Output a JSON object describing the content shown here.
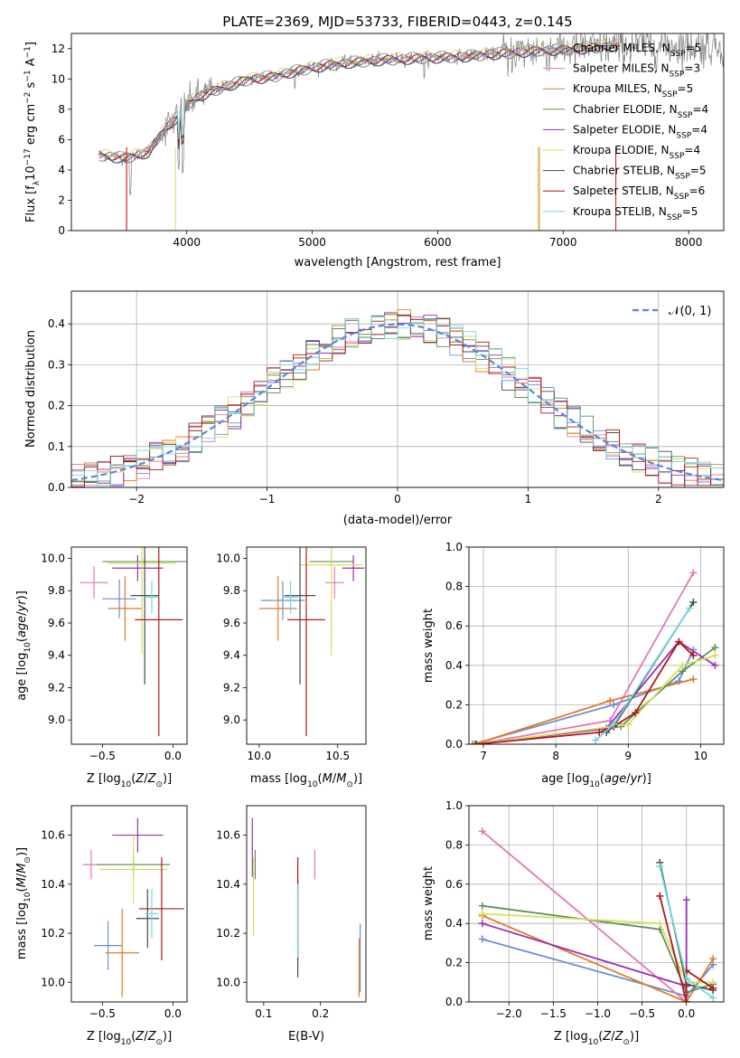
{
  "figure": {
    "title": "PLATE=2369, MJD=53733, FIBERID=0443, z=0.145"
  },
  "models": [
    {
      "name": "Chabrier MILES",
      "nssp": "5",
      "color": "#6b8fd6"
    },
    {
      "name": "Salpeter MILES",
      "nssp": "3",
      "color": "#e377b7"
    },
    {
      "name": "Kroupa MILES",
      "nssp": "5",
      "color": "#e07b25"
    },
    {
      "name": "Chabrier ELODIE",
      "nssp": "4",
      "color": "#5f8f57"
    },
    {
      "name": "Salpeter ELODIE",
      "nssp": "4",
      "color": "#9a2fb5"
    },
    {
      "name": "Kroupa ELODIE",
      "nssp": "4",
      "color": "#d5e05a"
    },
    {
      "name": "Chabrier STELIB",
      "nssp": "5",
      "color": "#4a4a4a"
    },
    {
      "name": "Salpeter STELIB",
      "nssp": "6",
      "color": "#b01818"
    },
    {
      "name": "Kroupa STELIB",
      "nssp": "5",
      "color": "#73d6dd"
    }
  ],
  "chart_data": [
    {
      "type": "line",
      "title": "PLATE=2369, MJD=53733, FIBERID=0443, z=0.145",
      "xlabel": "wavelength [Angstrom, rest frame]",
      "ylabel": "Flux [f_λ 10^-17 erg cm^-2 s^-1 A^-1]",
      "xlim": [
        3080,
        8280
      ],
      "ylim": [
        0,
        13
      ],
      "xticks": [
        4000,
        5000,
        6000,
        7000,
        8000
      ],
      "yticks": [
        0,
        2,
        4,
        6,
        8,
        10,
        12
      ],
      "data_color": "#808080",
      "continuum": {
        "x": [
          3300,
          3500,
          3700,
          3800,
          3900,
          4000,
          4100,
          4300,
          4500,
          4700,
          4900,
          5100,
          5300,
          5600,
          5900,
          6200,
          6500,
          6800,
          7100,
          7400
        ],
        "y": [
          5.0,
          4.8,
          5.2,
          6.5,
          7.3,
          8.3,
          8.9,
          9.5,
          10.0,
          10.2,
          10.6,
          10.9,
          11.1,
          11.3,
          11.4,
          11.5,
          11.7,
          11.9,
          12.0,
          12.2
        ]
      },
      "legend_location": "upper right"
    },
    {
      "type": "histogram",
      "xlabel": "(data-model)/error",
      "ylabel": "Normed distribution",
      "xlim": [
        -2.5,
        2.5
      ],
      "ylim": [
        0,
        0.48
      ],
      "xticks": [
        -2,
        -1,
        0,
        1,
        2
      ],
      "yticks": [
        0.0,
        0.1,
        0.2,
        0.3,
        0.4
      ],
      "grid": true,
      "bin_width": 0.1,
      "reference": {
        "label": "N(0,1)",
        "mu": 0,
        "sigma": 1,
        "color": "#5b86d8"
      },
      "legend_location": "upper right"
    },
    {
      "type": "errorbar",
      "xlabel": "Z [log10(Z/Z⊙)]",
      "ylabel": "age  [log10(age/yr)]",
      "xlim": [
        -0.72,
        0.1
      ],
      "ylim": [
        8.85,
        10.07
      ],
      "xticks": [
        -0.5,
        0.0
      ],
      "yticks": [
        9.0,
        9.2,
        9.4,
        9.6,
        9.8,
        10.0
      ],
      "points": [
        {
          "model": 0,
          "x": -0.38,
          "xerr": 0.12,
          "y": 9.75,
          "yerr": 0.12
        },
        {
          "model": 1,
          "x": -0.56,
          "xerr": 0.1,
          "y": 9.85,
          "yerr": 0.1
        },
        {
          "model": 2,
          "x": -0.34,
          "xerr": 0.12,
          "y": 9.69,
          "yerr": 0.2
        },
        {
          "model": 3,
          "x": -0.2,
          "xerr": 0.3,
          "y": 9.98,
          "yerr": 0.02
        },
        {
          "model": 4,
          "x": -0.25,
          "xerr": 0.18,
          "y": 9.94,
          "yerr": 0.08
        },
        {
          "model": 5,
          "x": -0.22,
          "xerr": 0.24,
          "y": 9.97,
          "yerr": 0.56
        },
        {
          "model": 6,
          "x": -0.2,
          "xerr": 0.1,
          "y": 9.77,
          "yerr": 0.55
        },
        {
          "model": 7,
          "x": -0.1,
          "xerr": 0.17,
          "y": 9.62,
          "yerr": 0.72
        },
        {
          "model": 8,
          "x": -0.15,
          "xerr": 0.05,
          "y": 9.76,
          "yerr": 0.1
        }
      ]
    },
    {
      "type": "errorbar",
      "xlabel": "mass [log10(M/M⊙)]",
      "ylabel": "",
      "xlim": [
        9.92,
        10.68
      ],
      "ylim": [
        8.85,
        10.07
      ],
      "xticks": [
        10.0,
        10.5
      ],
      "yticks": [
        9.0,
        9.2,
        9.4,
        9.6,
        9.8,
        10.0
      ],
      "points": [
        {
          "model": 0,
          "x": 10.15,
          "xerr": 0.14,
          "y": 9.74,
          "yerr": 0.12
        },
        {
          "model": 1,
          "x": 10.48,
          "xerr": 0.06,
          "y": 9.85,
          "yerr": 0.1
        },
        {
          "model": 2,
          "x": 10.12,
          "xerr": 0.12,
          "y": 9.69,
          "yerr": 0.2
        },
        {
          "model": 3,
          "x": 10.46,
          "xerr": 0.14,
          "y": 9.98,
          "yerr": 0.02
        },
        {
          "model": 4,
          "x": 10.6,
          "xerr": 0.07,
          "y": 9.94,
          "yerr": 0.08
        },
        {
          "model": 5,
          "x": 10.46,
          "xerr": 0.2,
          "y": 9.96,
          "yerr": 0.56
        },
        {
          "model": 6,
          "x": 10.26,
          "xerr": 0.1,
          "y": 9.77,
          "yerr": 0.55
        },
        {
          "model": 7,
          "x": 10.3,
          "xerr": 0.12,
          "y": 9.62,
          "yerr": 0.72
        },
        {
          "model": 8,
          "x": 10.2,
          "xerr": 0.05,
          "y": 9.76,
          "yerr": 0.1
        }
      ]
    },
    {
      "type": "line",
      "xlabel": "age  [log10(age/yr)]",
      "ylabel": "mass weight",
      "xlim": [
        6.8,
        10.32
      ],
      "ylim": [
        0,
        1.0
      ],
      "xticks": [
        7,
        8,
        9,
        10
      ],
      "yticks": [
        0.0,
        0.2,
        0.4,
        0.6,
        0.8,
        1.0
      ],
      "grid": true,
      "series": [
        {
          "model": 0,
          "x": [
            6.85,
            8.8,
            9.7,
            9.9
          ],
          "y": [
            0.0,
            0.2,
            0.32,
            0.48
          ]
        },
        {
          "model": 1,
          "x": [
            6.9,
            8.75,
            9.9
          ],
          "y": [
            0.0,
            0.12,
            0.87
          ]
        },
        {
          "model": 2,
          "x": [
            6.88,
            8.75,
            9.9
          ],
          "y": [
            0.0,
            0.22,
            0.33
          ]
        },
        {
          "model": 3,
          "x": [
            6.9,
            8.9,
            9.75,
            10.2
          ],
          "y": [
            0.0,
            0.09,
            0.37,
            0.49
          ]
        },
        {
          "model": 4,
          "x": [
            6.9,
            8.7,
            9.7,
            10.2
          ],
          "y": [
            0.0,
            0.08,
            0.52,
            0.4
          ]
        },
        {
          "model": 5,
          "x": [
            6.9,
            9.0,
            9.75,
            10.2
          ],
          "y": [
            0.0,
            0.1,
            0.4,
            0.45
          ]
        },
        {
          "model": 6,
          "x": [
            8.7,
            8.8,
            9.9
          ],
          "y": [
            0.06,
            0.09,
            0.72
          ]
        },
        {
          "model": 7,
          "x": [
            6.9,
            8.6,
            8.8,
            9.1,
            9.7,
            9.9
          ],
          "y": [
            0.0,
            0.06,
            0.09,
            0.16,
            0.52,
            0.45
          ]
        },
        {
          "model": 8,
          "x": [
            8.55,
            8.8,
            9.85
          ],
          "y": [
            0.02,
            0.1,
            0.69
          ]
        }
      ]
    },
    {
      "type": "errorbar",
      "xlabel": "Z [log10(Z/Z⊙)]",
      "ylabel": "mass [log10(M/M⊙)]",
      "xlim": [
        -0.72,
        0.1
      ],
      "ylim": [
        9.92,
        10.72
      ],
      "xticks": [
        -0.5,
        0.0
      ],
      "yticks": [
        10.0,
        10.2,
        10.4,
        10.6
      ],
      "points": [
        {
          "model": 0,
          "x": -0.46,
          "xerr": 0.1,
          "y": 10.15,
          "yerr": 0.1
        },
        {
          "model": 1,
          "x": -0.58,
          "xerr": 0.06,
          "y": 10.48,
          "yerr": 0.06
        },
        {
          "model": 2,
          "x": -0.36,
          "xerr": 0.12,
          "y": 10.12,
          "yerr": 0.18
        },
        {
          "model": 3,
          "x": -0.28,
          "xerr": 0.26,
          "y": 10.48,
          "yerr": 0.04
        },
        {
          "model": 4,
          "x": -0.25,
          "xerr": 0.18,
          "y": 10.6,
          "yerr": 0.07
        },
        {
          "model": 5,
          "x": -0.28,
          "xerr": 0.24,
          "y": 10.46,
          "yerr": 0.14
        },
        {
          "model": 6,
          "x": -0.18,
          "xerr": 0.08,
          "y": 10.26,
          "yerr": 0.12
        },
        {
          "model": 7,
          "x": -0.08,
          "xerr": 0.16,
          "y": 10.3,
          "yerr": 0.21
        },
        {
          "model": 8,
          "x": -0.15,
          "xerr": 0.05,
          "y": 10.28,
          "yerr": 0.1
        }
      ]
    },
    {
      "type": "errorbar",
      "xlabel": "E(B-V)",
      "ylabel": "",
      "xlim": [
        0.07,
        0.28
      ],
      "ylim": [
        9.92,
        10.72
      ],
      "xticks": [
        0.1,
        0.2
      ],
      "yticks": [
        10.0,
        10.2,
        10.4,
        10.6
      ],
      "points": [
        {
          "model": 0,
          "x": 0.27,
          "xerr": 0.0,
          "y": 10.1,
          "yerr": 0.14
        },
        {
          "model": 1,
          "x": 0.19,
          "xerr": 0.0,
          "y": 10.48,
          "yerr": 0.06
        },
        {
          "model": 2,
          "x": 0.268,
          "xerr": 0.0,
          "y": 10.06,
          "yerr": 0.12
        },
        {
          "model": 3,
          "x": 0.085,
          "xerr": 0.0,
          "y": 10.48,
          "yerr": 0.06
        },
        {
          "model": 4,
          "x": 0.08,
          "xerr": 0.0,
          "y": 10.55,
          "yerr": 0.12
        },
        {
          "model": 5,
          "x": 0.082,
          "xerr": 0.0,
          "y": 10.35,
          "yerr": 0.16
        },
        {
          "model": 6,
          "x": 0.16,
          "xerr": 0.0,
          "y": 10.22,
          "yerr": 0.2
        },
        {
          "model": 7,
          "x": 0.16,
          "xerr": 0.0,
          "y": 10.3,
          "yerr": 0.21
        },
        {
          "model": 8,
          "x": 0.16,
          "xerr": 0.0,
          "y": 10.25,
          "yerr": 0.15
        }
      ]
    },
    {
      "type": "line",
      "xlabel": "Z [log10(Z/Z⊙)]",
      "ylabel": "mass weight",
      "xlim": [
        -2.45,
        0.42
      ],
      "ylim": [
        0,
        1.0
      ],
      "xticks": [
        -2.0,
        -1.5,
        -1.0,
        -0.5,
        0.0
      ],
      "yticks": [
        0.0,
        0.2,
        0.4,
        0.6,
        0.8,
        1.0
      ],
      "grid": true,
      "series": [
        {
          "model": 0,
          "x": [
            -2.3,
            0.0,
            0.3
          ],
          "y": [
            0.32,
            0.03,
            0.19
          ]
        },
        {
          "model": 1,
          "x": [
            -2.3,
            0.0
          ],
          "y": [
            0.87,
            0.0
          ]
        },
        {
          "model": 2,
          "x": [
            -2.3,
            0.0,
            0.3
          ],
          "y": [
            0.44,
            0.0,
            0.22
          ]
        },
        {
          "model": 3,
          "x": [
            -2.3,
            -0.3,
            0.0,
            0.3
          ],
          "y": [
            0.49,
            0.37,
            0.05,
            0.09
          ]
        },
        {
          "model": 4,
          "x": [
            -2.3,
            0.0,
            0.0
          ],
          "y": [
            0.4,
            0.08,
            0.52
          ]
        },
        {
          "model": 5,
          "x": [
            -2.3,
            -0.3,
            0.0,
            0.3
          ],
          "y": [
            0.45,
            0.4,
            0.1,
            0.1
          ]
        },
        {
          "model": 6,
          "x": [
            -0.3,
            0.0,
            0.3
          ],
          "y": [
            0.71,
            0.09,
            0.06
          ]
        },
        {
          "model": 7,
          "x": [
            -0.3,
            0.0,
            0.0,
            0.3
          ],
          "y": [
            0.54,
            0.0,
            0.16,
            0.07
          ]
        },
        {
          "model": 8,
          "x": [
            -0.3,
            0.0,
            0.3
          ],
          "y": [
            0.69,
            0.12,
            0.02
          ]
        }
      ]
    }
  ]
}
